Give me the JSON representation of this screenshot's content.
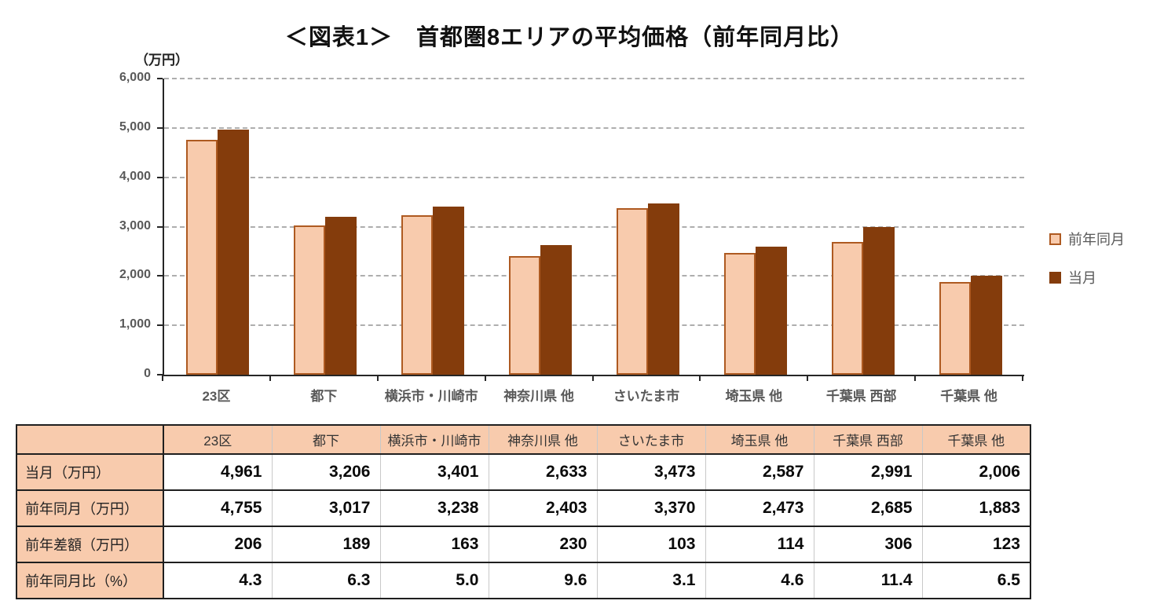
{
  "title": "＜図表1＞　首都圏8エリアの平均価格（前年同月比）",
  "chart_data": {
    "type": "bar",
    "unit_label": "（万円）",
    "categories": [
      "23区",
      "都下",
      "横浜市・川崎市",
      "神奈川県 他",
      "さいたま市",
      "埼玉県 他",
      "千葉県 西部",
      "千葉県 他"
    ],
    "series": [
      {
        "name": "前年同月",
        "values": [
          4755,
          3017,
          3238,
          2403,
          3370,
          2473,
          2685,
          1883
        ],
        "fill": "#F8CBAD",
        "border": "#AE5A21"
      },
      {
        "name": "当月",
        "values": [
          4961,
          3206,
          3401,
          2633,
          3473,
          2587,
          2991,
          2006
        ],
        "fill": "#843C0C",
        "border": "#843C0C"
      }
    ],
    "ylim": [
      0,
      6000
    ],
    "ytick_step": 1000,
    "ytick_labels": [
      "0",
      "1,000",
      "2,000",
      "3,000",
      "4,000",
      "5,000",
      "6,000"
    ],
    "grid": "horizontal-dashed",
    "legend_position": "right"
  },
  "colors": {
    "prev_year_fill": "#F8CBAD",
    "prev_year_border": "#AE5A21",
    "current_fill": "#843C0C",
    "gridline": "#AEAEAE",
    "axis": "#262626",
    "axis_text": "#595959",
    "table_header_bg": "#F8CBAD",
    "table_border_dark": "#1F1F1F",
    "table_border_light": "#C8C8C8"
  },
  "table": {
    "header": [
      "",
      "23区",
      "都下",
      "横浜市・川崎市",
      "神奈川県 他",
      "さいたま市",
      "埼玉県 他",
      "千葉県 西部",
      "千葉県 他"
    ],
    "rows": [
      {
        "label": "当月（万円）",
        "values": [
          "4,961",
          "3,206",
          "3,401",
          "2,633",
          "3,473",
          "2,587",
          "2,991",
          "2,006"
        ]
      },
      {
        "label": "前年同月（万円）",
        "values": [
          "4,755",
          "3,017",
          "3,238",
          "2,403",
          "3,370",
          "2,473",
          "2,685",
          "1,883"
        ]
      },
      {
        "label": "前年差額（万円）",
        "values": [
          "206",
          "189",
          "163",
          "230",
          "103",
          "114",
          "306",
          "123"
        ]
      },
      {
        "label": "前年同月比（%）",
        "values": [
          "4.3",
          "6.3",
          "5.0",
          "9.6",
          "3.1",
          "4.6",
          "11.4",
          "6.5"
        ]
      }
    ]
  }
}
